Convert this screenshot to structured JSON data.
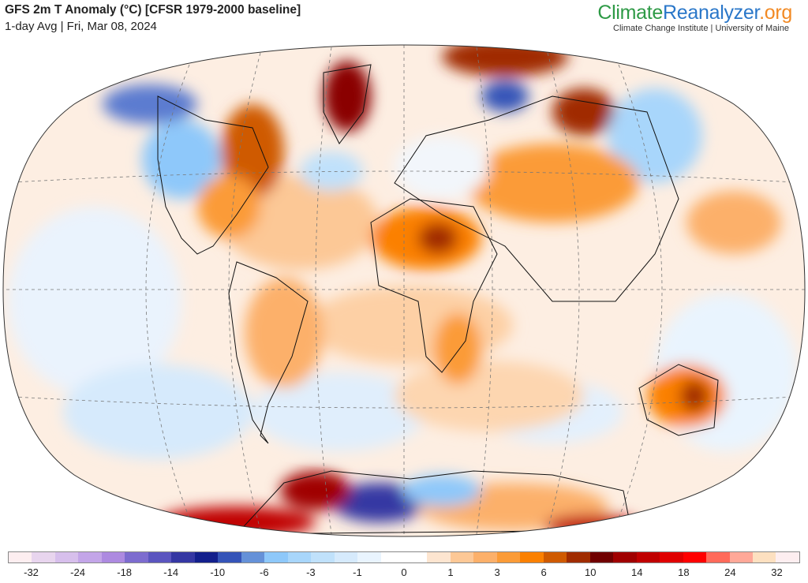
{
  "header": {
    "title": "GFS 2m T Anomaly (°C) [CFSR 1979-2000 baseline]",
    "subtitle": "1-day Avg | Fri, Mar 08, 2024"
  },
  "logo": {
    "part1": "Climate",
    "part2": "Reanalyzer",
    "part3": ".org",
    "institution": "Climate Change Institute | University of Maine"
  },
  "colorbar": {
    "colors": [
      "#fdeef0",
      "#e8d5ee",
      "#d7bfec",
      "#c3a5e8",
      "#ad8ae0",
      "#7d6ccf",
      "#5b55bf",
      "#3537a3",
      "#131f8c",
      "#3554b8",
      "#6591d8",
      "#8ec8fa",
      "#a8d6fb",
      "#c0e1fb",
      "#d6eafc",
      "#e9f4fe",
      "#ffffff",
      "#ffffff",
      "#fde5d0",
      "#fdc896",
      "#fcb06a",
      "#fb9b37",
      "#fb8000",
      "#cf5a00",
      "#a02c00",
      "#700000",
      "#a00000",
      "#c00000",
      "#e00000",
      "#ff0000",
      "#ff6a5a",
      "#ffa898",
      "#fde0c0",
      "#fdeef0"
    ],
    "labels": [
      "-32",
      "-24",
      "-18",
      "-14",
      "-10",
      "-6",
      "-3",
      "-1",
      "0",
      "1",
      "3",
      "6",
      "10",
      "14",
      "18",
      "24",
      "32"
    ]
  }
}
